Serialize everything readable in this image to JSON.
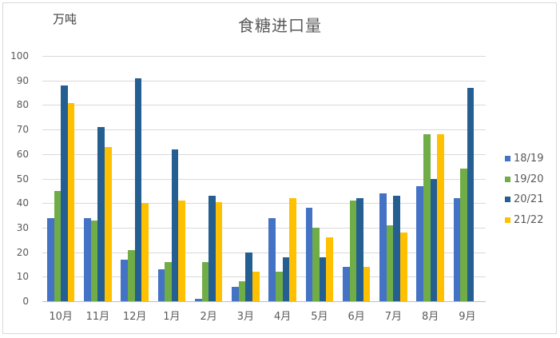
{
  "chart_data": {
    "type": "bar",
    "title": "食糖进口量",
    "unit_label": "万吨",
    "xlabel": "",
    "ylabel": "万吨",
    "ylim": [
      0,
      100
    ],
    "yticks": [
      0,
      10,
      20,
      30,
      40,
      50,
      60,
      70,
      80,
      90,
      100
    ],
    "grid": true,
    "legend_position": "right",
    "categories": [
      "10月",
      "11月",
      "12月",
      "1月",
      "2月",
      "3月",
      "4月",
      "5月",
      "6月",
      "7月",
      "8月",
      "9月"
    ],
    "series": [
      {
        "name": "18/19",
        "color": "#4472C4",
        "values": [
          34,
          34,
          17,
          13,
          1,
          6,
          34,
          38,
          14,
          44,
          47,
          42
        ]
      },
      {
        "name": "19/20",
        "color": "#70AD47",
        "values": [
          45,
          33,
          21,
          16,
          16,
          8,
          12,
          30,
          41,
          31,
          68,
          54
        ]
      },
      {
        "name": "20/21",
        "color": "#255E91",
        "values": [
          88,
          71,
          91,
          62,
          43,
          20,
          18,
          18,
          42,
          43,
          50,
          87
        ]
      },
      {
        "name": "21/22",
        "color": "#FFC000",
        "values": [
          80.8,
          63,
          40,
          41,
          40.5,
          12,
          42,
          26,
          14,
          28,
          68,
          null
        ]
      }
    ]
  }
}
